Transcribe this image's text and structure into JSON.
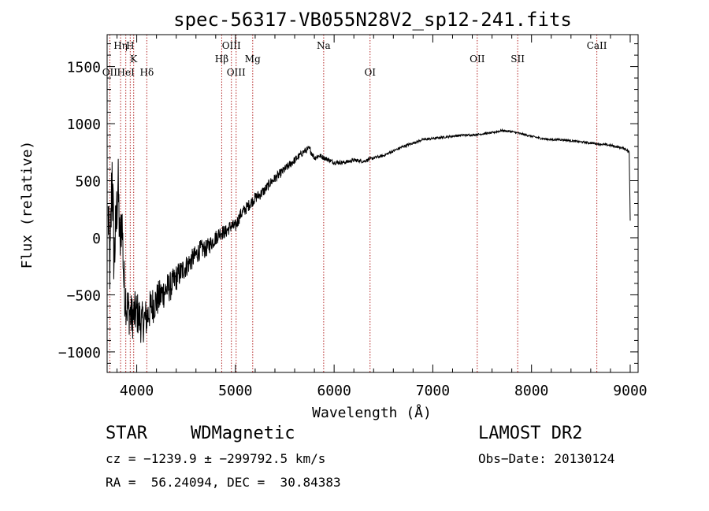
{
  "chart_data": {
    "type": "line",
    "title": "spec-56317-VB055N28V2_sp12-241.fits",
    "xlabel": "Wavelength (Å)",
    "ylabel": "Flux (relative)",
    "xlim": [
      3700,
      9080
    ],
    "ylim": [
      -1180,
      1780
    ],
    "xticks": [
      4000,
      5000,
      6000,
      7000,
      8000,
      9000
    ],
    "yticks": [
      -1000,
      -500,
      0,
      500,
      1000,
      1500
    ],
    "grid": false,
    "line_color": "#000000",
    "marker_color": "#b22222",
    "spectral_lines": [
      {
        "label": "OII",
        "x": 3727,
        "row": 3
      },
      {
        "label": "Hη",
        "x": 3836,
        "row": 1
      },
      {
        "label": "HeI",
        "x": 3889,
        "row": 3
      },
      {
        "label": "H",
        "x": 3934,
        "row": 1
      },
      {
        "label": "K",
        "x": 3969,
        "row": 2
      },
      {
        "label": "Hδ",
        "x": 4102,
        "row": 3
      },
      {
        "label": "Hβ",
        "x": 4861,
        "row": 2
      },
      {
        "label": "OIII",
        "x": 4959,
        "row": 1
      },
      {
        "label": "OIII",
        "x": 5007,
        "row": 3
      },
      {
        "label": "Mg",
        "x": 5175,
        "row": 2
      },
      {
        "label": "Na",
        "x": 5894,
        "row": 1
      },
      {
        "label": "OI",
        "x": 6364,
        "row": 3
      },
      {
        "label": "OII",
        "x": 7450,
        "row": 2
      },
      {
        "label": "SII",
        "x": 7860,
        "row": 2
      },
      {
        "label": "CaII",
        "x": 8662,
        "row": 1
      }
    ],
    "series": [
      {
        "x": [
          3710,
          3730,
          3750,
          3770,
          3790,
          3810,
          3830,
          3850,
          3870,
          3900,
          3950,
          4000,
          4050,
          4100,
          4150,
          4200,
          4250,
          4300,
          4350,
          4400,
          4450,
          4500,
          4550,
          4600,
          4650,
          4700,
          4750,
          4800,
          4850,
          4900,
          4950,
          5000,
          5050,
          5100,
          5150,
          5200,
          5250,
          5300,
          5350,
          5400,
          5450,
          5500,
          5550,
          5600,
          5650,
          5700,
          5750,
          5800,
          5850,
          5900,
          5950,
          6000,
          6100,
          6200,
          6300,
          6400,
          6500,
          6600,
          6700,
          6800,
          6900,
          7000,
          7100,
          7200,
          7300,
          7400,
          7500,
          7600,
          7700,
          7800,
          7900,
          8000,
          8100,
          8200,
          8300,
          8400,
          8500,
          8600,
          8700,
          8800,
          8900,
          8950,
          8990,
          9000
        ],
        "y": [
          200,
          -300,
          600,
          -200,
          100,
          500,
          -100,
          200,
          -400,
          -600,
          -700,
          -650,
          -750,
          -700,
          -600,
          -550,
          -500,
          -450,
          -420,
          -350,
          -300,
          -250,
          -200,
          -150,
          -100,
          -100,
          -50,
          0,
          50,
          50,
          100,
          100,
          200,
          250,
          300,
          350,
          380,
          420,
          480,
          520,
          560,
          600,
          640,
          680,
          720,
          760,
          780,
          700,
          720,
          700,
          680,
          660,
          660,
          680,
          670,
          700,
          720,
          760,
          800,
          830,
          860,
          870,
          880,
          890,
          900,
          900,
          910,
          920,
          940,
          930,
          910,
          890,
          870,
          860,
          860,
          850,
          840,
          830,
          820,
          810,
          790,
          780,
          750,
          150
        ],
        "noise": [
          250,
          350,
          400,
          350,
          300,
          300,
          250,
          250,
          250,
          220,
          200,
          200,
          190,
          180,
          170,
          160,
          150,
          140,
          130,
          120,
          110,
          100,
          95,
          90,
          85,
          80,
          75,
          70,
          65,
          60,
          60,
          60,
          55,
          55,
          50,
          50,
          48,
          46,
          44,
          42,
          40,
          38,
          36,
          34,
          32,
          30,
          28,
          26,
          24,
          22,
          20,
          20,
          18,
          16,
          15,
          14,
          13,
          12,
          12,
          11,
          10,
          10,
          10,
          10,
          9,
          9,
          9,
          9,
          9,
          9,
          9,
          9,
          9,
          9,
          9,
          9,
          9,
          9,
          9,
          10,
          10,
          10,
          12,
          0
        ]
      }
    ]
  },
  "info": {
    "class": "STAR",
    "subclass": "WDMagnetic",
    "survey": "LAMOST DR2",
    "cz": "cz = −1239.9 ± −299792.5 km/s",
    "obs_date": "Obs−Date: 20130124",
    "radec": "RA =  56.24094, DEC =  30.84383"
  }
}
